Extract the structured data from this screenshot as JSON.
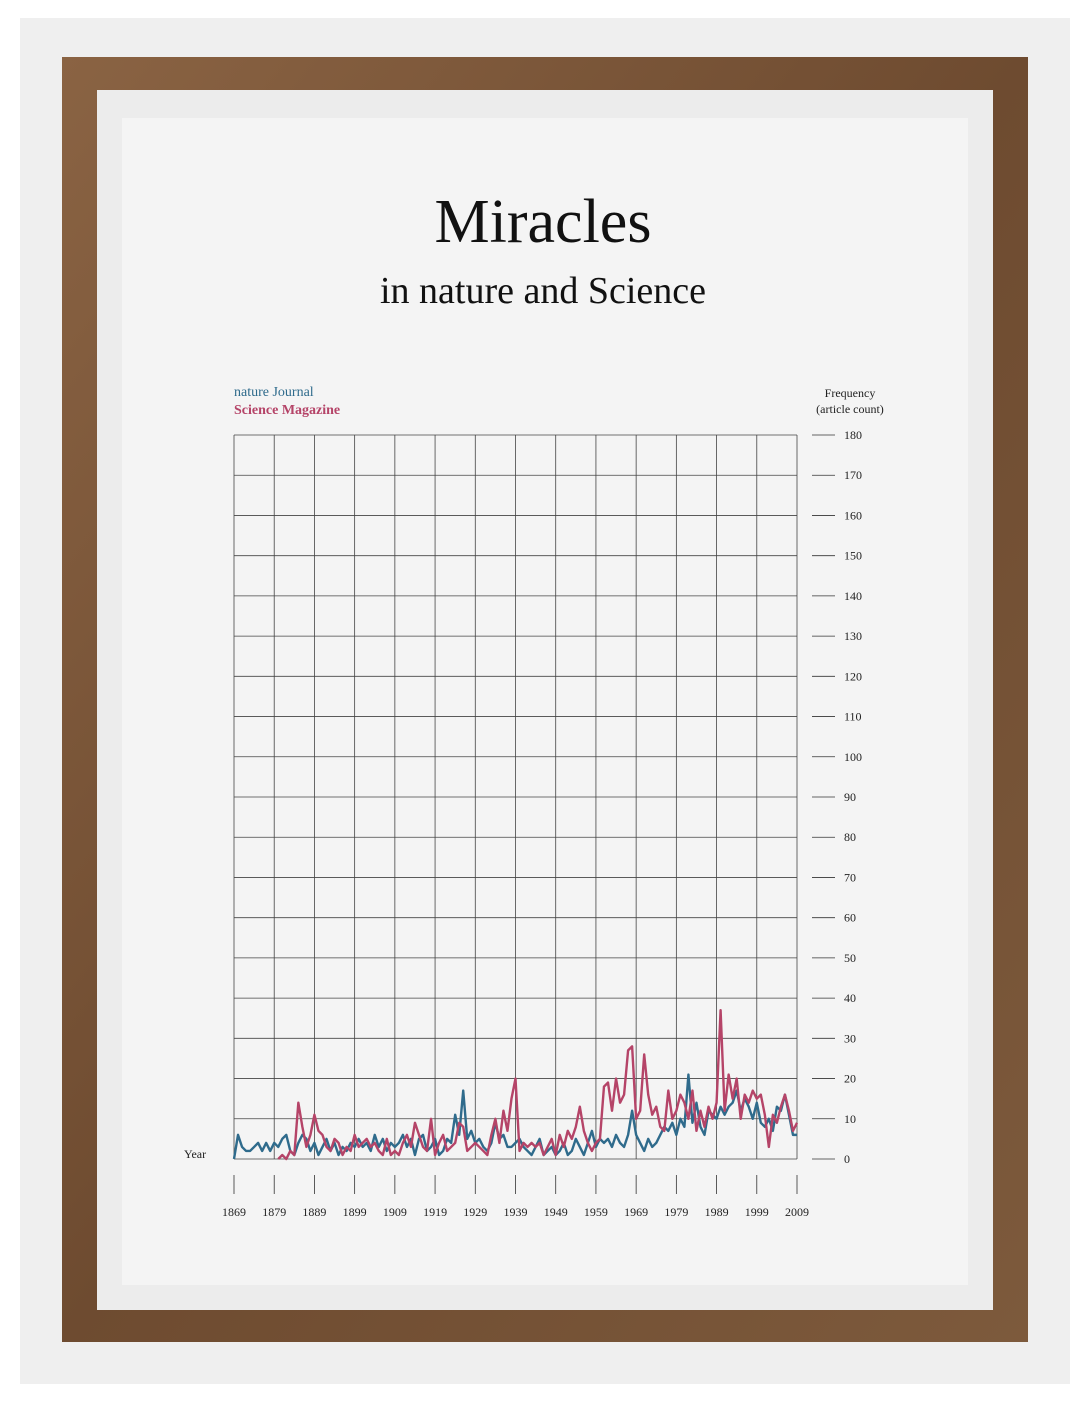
{
  "chart_data": {
    "type": "line",
    "title": "Miracles",
    "subtitle": "in nature and Science",
    "x_label": "Year",
    "y_label": "Frequency",
    "y_label_note": "(article count)",
    "x": [
      1869,
      1870,
      1871,
      1872,
      1873,
      1874,
      1875,
      1876,
      1877,
      1878,
      1879,
      1880,
      1881,
      1882,
      1883,
      1884,
      1885,
      1886,
      1887,
      1888,
      1889,
      1890,
      1891,
      1892,
      1893,
      1894,
      1895,
      1896,
      1897,
      1898,
      1899,
      1900,
      1901,
      1902,
      1903,
      1904,
      1905,
      1906,
      1907,
      1908,
      1909,
      1910,
      1911,
      1912,
      1913,
      1914,
      1915,
      1916,
      1917,
      1918,
      1919,
      1920,
      1921,
      1922,
      1923,
      1924,
      1925,
      1926,
      1927,
      1928,
      1929,
      1930,
      1931,
      1932,
      1933,
      1934,
      1935,
      1936,
      1937,
      1938,
      1939,
      1940,
      1941,
      1942,
      1943,
      1944,
      1945,
      1946,
      1947,
      1948,
      1949,
      1950,
      1951,
      1952,
      1953,
      1954,
      1955,
      1956,
      1957,
      1958,
      1959,
      1960,
      1961,
      1962,
      1963,
      1964,
      1965,
      1966,
      1967,
      1968,
      1969,
      1970,
      1971,
      1972,
      1973,
      1974,
      1975,
      1976,
      1977,
      1978,
      1979,
      1980,
      1981,
      1982,
      1983,
      1984,
      1985,
      1986,
      1987,
      1988,
      1989,
      1990,
      1991,
      1992,
      1993,
      1994,
      1995,
      1996,
      1997,
      1998,
      1999,
      2000,
      2001,
      2002,
      2003,
      2004,
      2005,
      2006,
      2007,
      2008,
      2009
    ],
    "series": [
      {
        "name": "nature Journal",
        "color": "#2f6b8c",
        "values": [
          0,
          6,
          3,
          2,
          2,
          3,
          4,
          2,
          4,
          2,
          4,
          3,
          5,
          6,
          2,
          1,
          4,
          6,
          5,
          2,
          4,
          1,
          3,
          5,
          2,
          4,
          1,
          3,
          2,
          4,
          3,
          5,
          3,
          4,
          2,
          6,
          3,
          5,
          2,
          4,
          3,
          4,
          6,
          3,
          5,
          1,
          5,
          6,
          2,
          3,
          5,
          1,
          2,
          5,
          4,
          11,
          6,
          17,
          5,
          7,
          4,
          5,
          3,
          2,
          4,
          9,
          5,
          6,
          3,
          3,
          4,
          5,
          3,
          2,
          1,
          3,
          5,
          1,
          2,
          3,
          1,
          2,
          4,
          1,
          2,
          5,
          3,
          1,
          4,
          7,
          3,
          5,
          4,
          5,
          3,
          6,
          4,
          3,
          6,
          12,
          6,
          4,
          2,
          5,
          3,
          4,
          6,
          8,
          7,
          9,
          6,
          10,
          8,
          21,
          9,
          14,
          8,
          6,
          12,
          11,
          10,
          13,
          11,
          13,
          14,
          17,
          12,
          15,
          13,
          10,
          14,
          9,
          8,
          10,
          7,
          13,
          12,
          16,
          11,
          6,
          6
        ]
      },
      {
        "name": "Science Magazine",
        "color": "#b54468",
        "values": [
          null,
          null,
          null,
          null,
          null,
          null,
          null,
          null,
          null,
          null,
          null,
          0,
          1,
          0,
          2,
          1,
          14,
          8,
          3,
          6,
          11,
          7,
          6,
          3,
          2,
          5,
          4,
          1,
          3,
          2,
          6,
          3,
          4,
          5,
          3,
          4,
          2,
          1,
          5,
          1,
          2,
          1,
          4,
          6,
          3,
          9,
          6,
          3,
          2,
          10,
          1,
          4,
          6,
          2,
          3,
          4,
          9,
          8,
          2,
          3,
          4,
          3,
          2,
          1,
          6,
          10,
          4,
          12,
          7,
          15,
          20,
          2,
          4,
          3,
          4,
          3,
          4,
          1,
          3,
          5,
          1,
          6,
          3,
          7,
          5,
          8,
          13,
          7,
          4,
          2,
          4,
          5,
          18,
          19,
          12,
          20,
          14,
          16,
          27,
          28,
          10,
          12,
          26,
          16,
          11,
          13,
          8,
          7,
          17,
          10,
          12,
          16,
          14,
          10,
          17,
          7,
          12,
          8,
          13,
          10,
          14,
          37,
          12,
          21,
          15,
          20,
          10,
          16,
          14,
          17,
          15,
          16,
          11,
          3,
          11,
          9,
          13,
          16,
          12,
          7,
          9
        ]
      }
    ],
    "xlim": [
      1869,
      2009
    ],
    "xticks": [
      1869,
      1879,
      1889,
      1899,
      1909,
      1919,
      1929,
      1939,
      1949,
      1959,
      1969,
      1979,
      1989,
      1999,
      2009
    ],
    "ylim": [
      0,
      180
    ],
    "yticks": [
      0,
      10,
      20,
      30,
      40,
      50,
      60,
      70,
      80,
      90,
      100,
      110,
      120,
      130,
      140,
      150,
      160,
      170,
      180
    ],
    "grid": true
  }
}
